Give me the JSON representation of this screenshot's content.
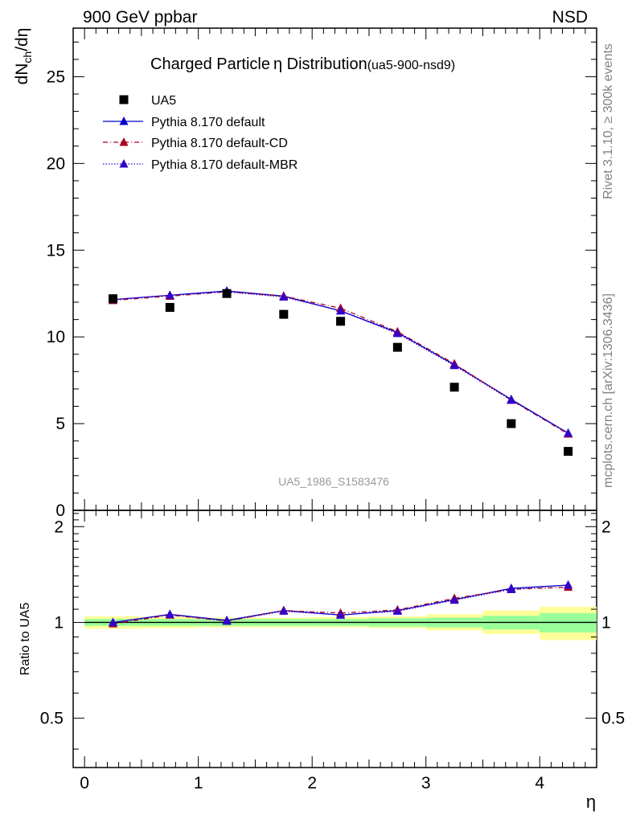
{
  "header": {
    "left": "900 GeV ppbar",
    "right": "NSD"
  },
  "side_labels": {
    "rivet": "Rivet 3.1.10, ≥ 300k events",
    "mcplots": "mcplots.cern.ch [arXiv:1306.3436]"
  },
  "colors": {
    "data": "#000000",
    "default": "#0000cc",
    "default_cd": "#aa0022",
    "default_mbr": "#3300cc",
    "band_inner": "#99ff99",
    "band_outer": "#ffff99"
  },
  "chart_data": [
    {
      "type": "line",
      "title_main": "Charged Particle",
      "title_symbol": "η",
      "title_rest": " Distribution",
      "title_tag": "(ua5-900-nsd9)",
      "ylabel": "dN_ch/dη",
      "ylabel_main": "dN",
      "ylabel_sub": "ch",
      "ylabel_rest": "/dη",
      "xlim": [
        -0.1,
        4.5
      ],
      "ylim": [
        0,
        27.8
      ],
      "yticks": [
        "5",
        "10",
        "15",
        "20",
        "25"
      ],
      "yticks_values": [
        5,
        10,
        15,
        20,
        25
      ],
      "ytick_zero": "0",
      "watermark": "UA5_1986_S1583476",
      "legend": [
        "UA5",
        "Pythia 8.170 default",
        "Pythia 8.170 default-CD",
        "Pythia 8.170 default-MBR"
      ],
      "x": [
        0.25,
        0.75,
        1.25,
        1.75,
        2.25,
        2.75,
        3.25,
        3.75,
        4.25
      ],
      "series": [
        {
          "name": "UA5",
          "values": [
            12.2,
            11.7,
            12.5,
            11.3,
            10.9,
            9.4,
            7.1,
            5.0,
            3.4
          ]
        },
        {
          "name": "Pythia 8.170 default",
          "values": [
            12.15,
            12.4,
            12.65,
            12.35,
            11.5,
            10.25,
            8.4,
            6.4,
            4.45
          ]
        },
        {
          "name": "Pythia 8.170 default-CD",
          "values": [
            12.1,
            12.35,
            12.6,
            12.35,
            11.65,
            10.3,
            8.45,
            6.35,
            4.4
          ]
        },
        {
          "name": "Pythia 8.170 default-MBR",
          "values": [
            12.15,
            12.4,
            12.6,
            12.3,
            11.5,
            10.2,
            8.35,
            6.35,
            4.45
          ]
        }
      ]
    },
    {
      "type": "line",
      "ylabel": "Ratio to UA5",
      "xlabel": "η",
      "xlim": [
        -0.1,
        4.5
      ],
      "ylim": [
        0.35,
        2.25
      ],
      "xticks": [
        "0",
        "1",
        "2",
        "3",
        "4"
      ],
      "xticks_values": [
        0,
        1,
        2,
        3,
        4
      ],
      "yticks": [
        "0.5",
        "1",
        "2"
      ],
      "yticks_values": [
        0.5,
        1,
        2
      ],
      "x": [
        0.25,
        0.75,
        1.25,
        1.75,
        2.25,
        2.75,
        3.25,
        3.75,
        4.25
      ],
      "bins": [
        [
          0,
          0.5
        ],
        [
          0.5,
          1
        ],
        [
          1,
          1.5
        ],
        [
          1.5,
          2
        ],
        [
          2,
          2.5
        ],
        [
          2.5,
          3
        ],
        [
          3,
          3.5
        ],
        [
          3.5,
          4
        ],
        [
          4,
          4.5
        ]
      ],
      "band_inner": [
        [
          0.975,
          1.025
        ],
        [
          0.975,
          1.025
        ],
        [
          0.975,
          1.025
        ],
        [
          0.975,
          1.025
        ],
        [
          0.975,
          1.025
        ],
        [
          0.97,
          1.03
        ],
        [
          0.965,
          1.035
        ],
        [
          0.95,
          1.05
        ],
        [
          0.93,
          1.07
        ]
      ],
      "band_outer": [
        [
          0.955,
          1.045
        ],
        [
          0.96,
          1.04
        ],
        [
          0.965,
          1.035
        ],
        [
          0.965,
          1.035
        ],
        [
          0.965,
          1.04
        ],
        [
          0.96,
          1.045
        ],
        [
          0.945,
          1.06
        ],
        [
          0.92,
          1.09
        ],
        [
          0.88,
          1.12
        ]
      ],
      "series": [
        {
          "name": "Pythia 8.170 default",
          "values": [
            1.0,
            1.06,
            1.015,
            1.09,
            1.055,
            1.09,
            1.18,
            1.28,
            1.31
          ]
        },
        {
          "name": "Pythia 8.170 default-CD",
          "values": [
            0.99,
            1.055,
            1.01,
            1.09,
            1.07,
            1.095,
            1.19,
            1.27,
            1.29
          ]
        },
        {
          "name": "Pythia 8.170 default-MBR",
          "values": [
            1.0,
            1.06,
            1.01,
            1.085,
            1.055,
            1.085,
            1.175,
            1.27,
            1.31
          ]
        }
      ]
    }
  ]
}
